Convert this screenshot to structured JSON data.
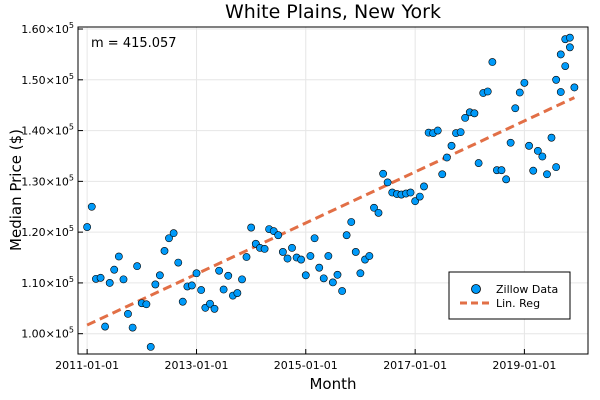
{
  "chart_data": {
    "type": "scatter",
    "title": "White Plains, New York",
    "xlabel": "Month",
    "ylabel": "Median Price ($)",
    "annotation": "m = 415.057",
    "x_ticks": [
      "2011-01-01",
      "2013-01-01",
      "2015-01-01",
      "2017-01-01",
      "2019-01-01"
    ],
    "y_ticks": [
      {
        "value": 100000,
        "base": "1.00×10",
        "exp": "5"
      },
      {
        "value": 110000,
        "base": "1.10×10",
        "exp": "5"
      },
      {
        "value": 120000,
        "base": "1.20×10",
        "exp": "5"
      },
      {
        "value": 130000,
        "base": "1.30×10",
        "exp": "5"
      },
      {
        "value": 140000,
        "base": "1.40×10",
        "exp": "5"
      },
      {
        "value": 150000,
        "base": "1.50×10",
        "exp": "5"
      },
      {
        "value": 160000,
        "base": "1.60×10",
        "exp": "5"
      }
    ],
    "xlim": [
      "2010-11-01",
      "2020-03-01"
    ],
    "ylim": [
      96000,
      160400
    ],
    "grid": true,
    "legend_position": "bottom-right",
    "series": [
      {
        "name": "Zillow Data",
        "kind": "scatter",
        "color": "#009AF9",
        "x": [
          "2011-01-01",
          "2011-02-01",
          "2011-03-01",
          "2011-04-01",
          "2011-05-01",
          "2011-06-01",
          "2011-07-01",
          "2011-08-01",
          "2011-09-01",
          "2011-10-01",
          "2011-11-01",
          "2011-12-01",
          "2012-01-01",
          "2012-02-01",
          "2012-03-01",
          "2012-04-01",
          "2012-05-01",
          "2012-06-01",
          "2012-07-01",
          "2012-08-01",
          "2012-09-01",
          "2012-10-01",
          "2012-11-01",
          "2012-12-01",
          "2013-01-01",
          "2013-02-01",
          "2013-03-01",
          "2013-04-01",
          "2013-05-01",
          "2013-06-01",
          "2013-07-01",
          "2013-08-01",
          "2013-09-01",
          "2013-10-01",
          "2013-11-01",
          "2013-12-01",
          "2014-01-01",
          "2014-02-01",
          "2014-03-01",
          "2014-04-01",
          "2014-05-01",
          "2014-06-01",
          "2014-07-01",
          "2014-08-01",
          "2014-09-01",
          "2014-10-01",
          "2014-11-01",
          "2014-12-01",
          "2015-01-01",
          "2015-02-01",
          "2015-03-01",
          "2015-04-01",
          "2015-05-01",
          "2015-06-01",
          "2015-07-01",
          "2015-08-01",
          "2015-09-01",
          "2015-10-01",
          "2015-11-01",
          "2015-12-01",
          "2016-01-01",
          "2016-02-01",
          "2016-03-01",
          "2016-04-01",
          "2016-05-01",
          "2016-06-01",
          "2016-07-01",
          "2016-08-01",
          "2016-09-01",
          "2016-10-01",
          "2016-11-01",
          "2016-12-01",
          "2017-01-01",
          "2017-02-01",
          "2017-03-01",
          "2017-04-01",
          "2017-05-01",
          "2017-06-01",
          "2017-07-01",
          "2017-08-01",
          "2017-09-01",
          "2017-10-01",
          "2017-11-01",
          "2017-12-01",
          "2018-01-01",
          "2018-02-01",
          "2018-03-01",
          "2018-04-01",
          "2018-05-01",
          "2018-06-01",
          "2018-07-01",
          "2018-08-01",
          "2018-09-01",
          "2018-10-01",
          "2018-11-01",
          "2018-12-01",
          "2019-01-01",
          "2019-02-01",
          "2019-03-01",
          "2019-04-01",
          "2019-05-01",
          "2019-06-01",
          "2019-07-01",
          "2019-08-01",
          "2019-09-01",
          "2019-10-01",
          "2019-11-01",
          "2019-12-01"
        ],
        "y": [
          121000,
          125000,
          110800,
          111000,
          101400,
          110000,
          112600,
          115200,
          110700,
          103900,
          101200,
          113300,
          106000,
          105800,
          97400,
          109700,
          111500,
          116300,
          118800,
          119800,
          114000,
          106300,
          109300,
          109500,
          111900,
          108600,
          105100,
          105900,
          104900,
          112400,
          108700,
          111400,
          107500,
          108000,
          110700,
          115100,
          120900,
          117700,
          116900,
          116700,
          120600,
          120200,
          119400,
          116100,
          114800,
          116900,
          115000,
          114600,
          111500,
          115300,
          118800,
          113000,
          110900,
          115300,
          110100,
          111600,
          108400,
          119400,
          122000,
          116100,
          111900,
          114600,
          115300,
          124800,
          123800,
          131500,
          129800,
          127800,
          127500,
          127400,
          127600,
          127800,
          126100,
          127000,
          129000,
          139600,
          139500,
          140000,
          131400,
          134700,
          137000,
          139500,
          139700,
          142500,
          143600,
          143400,
          133600,
          147400,
          147700,
          153500,
          132200,
          132200,
          130400,
          137600,
          144400,
          147500,
          149400,
          137000,
          132100,
          136000,
          134900,
          131400,
          138600,
          132800,
          147600,
          152700,
          156400,
          148500
        ],
        "y_extra_points": [
          [
            "2019-08-01",
            150000
          ],
          [
            "2019-09-01",
            155000
          ],
          [
            "2019-10-01",
            158000
          ],
          [
            "2019-11-01",
            158300
          ]
        ]
      },
      {
        "name": "Lin. Reg",
        "kind": "line",
        "style": "dashed",
        "color": "#E26F46",
        "x": [
          "2011-01-01",
          "2019-12-01"
        ],
        "y": [
          101700,
          146500
        ]
      }
    ]
  }
}
